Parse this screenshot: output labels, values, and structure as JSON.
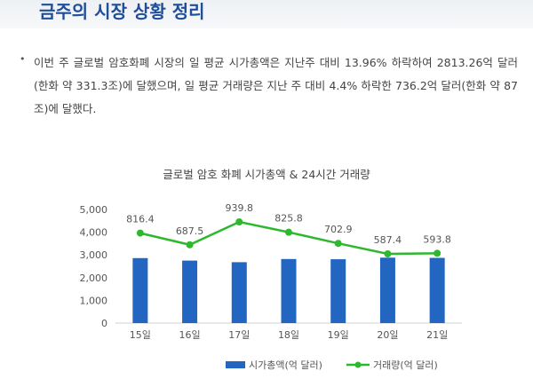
{
  "header": {
    "title": "금주의 시장 상황 정리"
  },
  "summary": {
    "bullet": "•",
    "text": "이번 주 글로벌 암호화폐 시장의 일 평균 시가총액은 지난주 대비 13.96% 하락하여 2813.26억 달러(한화 약 331.3조)에 달했으며, 일 평균 거래량은 지난 주 대비 4.4% 하락한 736.2억 달러(한화 약 87조)에 달했다."
  },
  "colors": {
    "bar": "#2266c2",
    "line": "#2db82d",
    "heading": "#1f4e9c"
  },
  "chart_data": {
    "type": "bar+line",
    "title": "글로벌 암호 화폐 시가총액 & 24시간 거래량",
    "categories": [
      "15일",
      "16일",
      "17일",
      "18일",
      "19일",
      "20일",
      "21일"
    ],
    "ylim": [
      0,
      5000
    ],
    "yticks": [
      "0",
      "1,000",
      "2,000",
      "3,000",
      "4,000",
      "5,000"
    ],
    "ytick_values": [
      0,
      1000,
      2000,
      3000,
      4000,
      5000
    ],
    "series": [
      {
        "name": "시가총액(억 달러)",
        "type": "bar",
        "values": [
          2860,
          2750,
          2680,
          2820,
          2810,
          2880,
          2870
        ]
      },
      {
        "name": "거래량(억 달러)",
        "type": "line",
        "values": [
          816.4,
          687.5,
          939.8,
          825.8,
          702.9,
          587.4,
          593.8
        ],
        "labels": [
          "816.4",
          "687.5",
          "939.8",
          "825.8",
          "702.9",
          "587.4",
          "593.8"
        ]
      }
    ],
    "legend": "bottom",
    "grid": false
  }
}
